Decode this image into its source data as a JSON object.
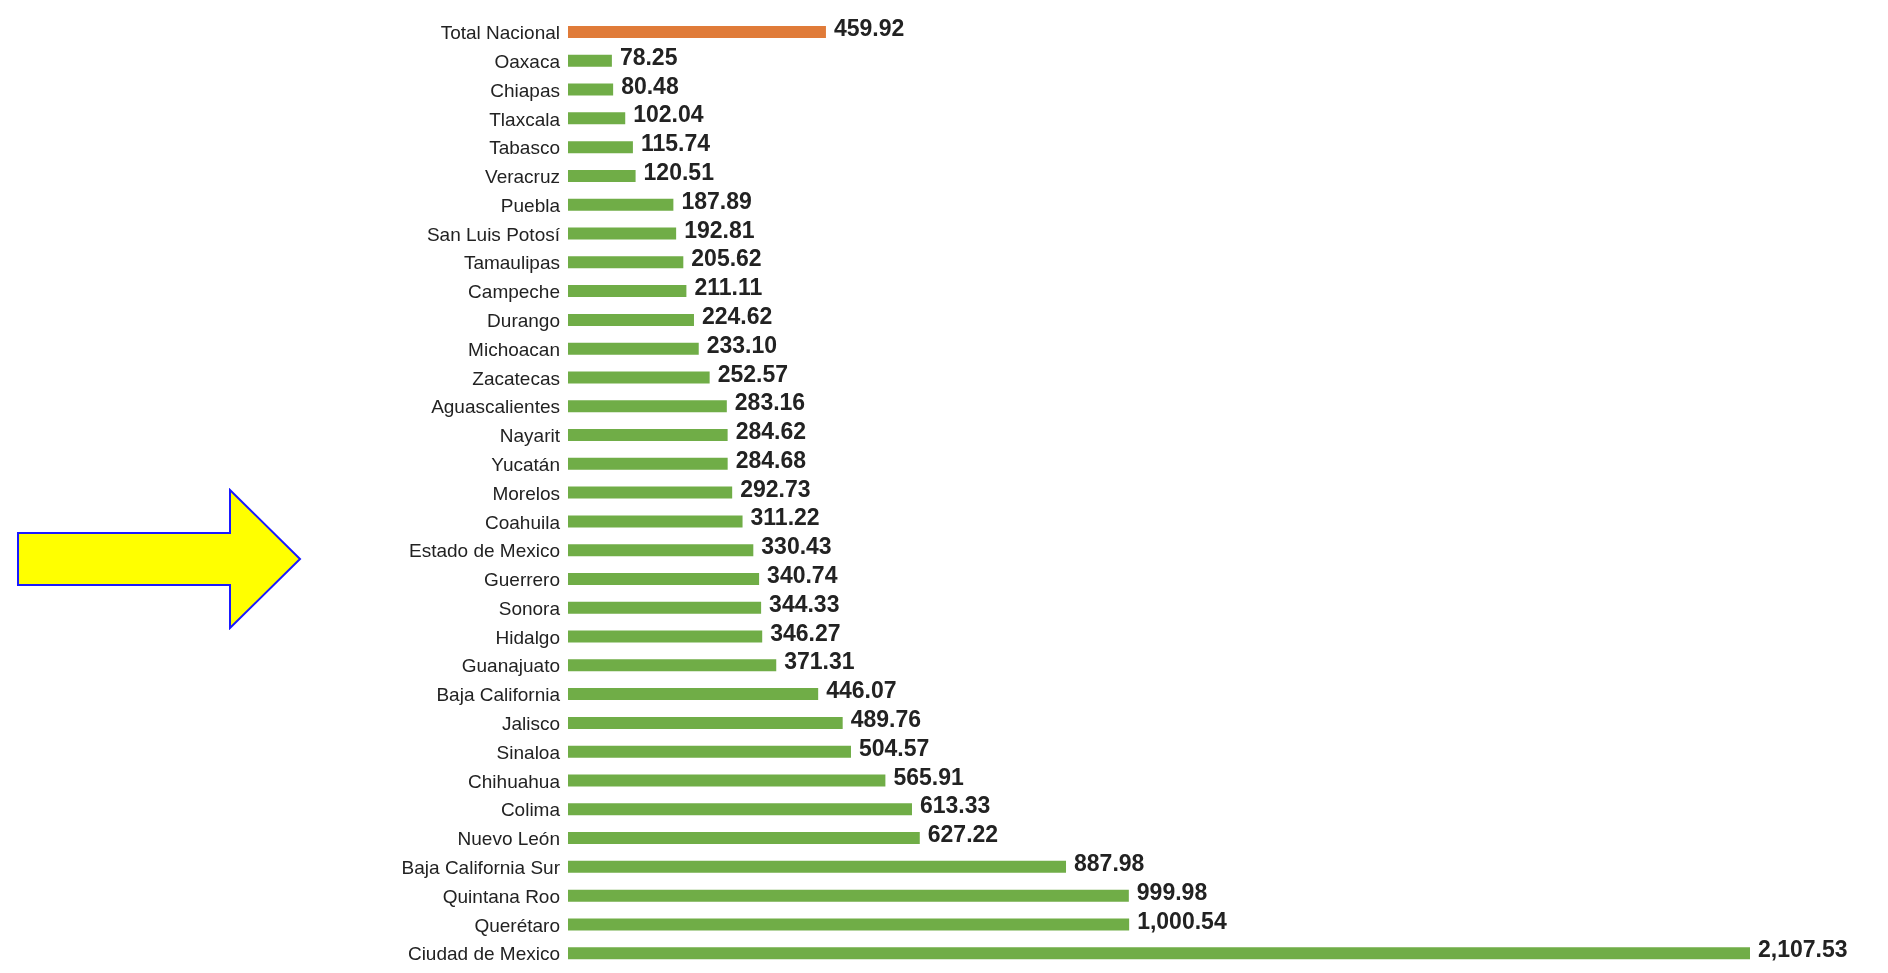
{
  "chart_data": {
    "type": "bar",
    "orientation": "horizontal",
    "categories": [
      "Total Nacional",
      "Oaxaca",
      "Chiapas",
      "Tlaxcala",
      "Tabasco",
      "Veracruz",
      "Puebla",
      "San Luis Potosí",
      "Tamaulipas",
      "Campeche",
      "Durango",
      "Michoacan",
      "Zacatecas",
      "Aguascalientes",
      "Nayarit",
      "Yucatán",
      "Morelos",
      "Coahuila",
      "Estado de Mexico",
      "Guerrero",
      "Sonora",
      "Hidalgo",
      "Guanajuato",
      "Baja California",
      "Jalisco",
      "Sinaloa",
      "Chihuahua",
      "Colima",
      "Nuevo León",
      "Baja California Sur",
      "Quintana Roo",
      "Querétaro",
      "Ciudad de Mexico"
    ],
    "values": [
      459.92,
      78.25,
      80.48,
      102.04,
      115.74,
      120.51,
      187.89,
      192.81,
      205.62,
      211.11,
      224.62,
      233.1,
      252.57,
      283.16,
      284.62,
      284.68,
      292.73,
      311.22,
      330.43,
      340.74,
      344.33,
      346.27,
      371.31,
      446.07,
      489.76,
      504.57,
      565.91,
      613.33,
      627.22,
      887.98,
      999.98,
      1000.54,
      2107.53
    ],
    "value_labels": [
      "459.92",
      "78.25",
      "80.48",
      "102.04",
      "115.74",
      "120.51",
      "187.89",
      "192.81",
      "205.62",
      "211.11",
      "224.62",
      "233.10",
      "252.57",
      "283.16",
      "284.62",
      "284.68",
      "292.73",
      "311.22",
      "330.43",
      "340.74",
      "344.33",
      "346.27",
      "371.31",
      "446.07",
      "489.76",
      "504.57",
      "565.91",
      "613.33",
      "627.22",
      "887.98",
      "999.98",
      "1,000.54",
      "2,107.53"
    ],
    "colors": [
      "#e07b39",
      "#70ad47",
      "#70ad47",
      "#70ad47",
      "#70ad47",
      "#70ad47",
      "#70ad47",
      "#70ad47",
      "#70ad47",
      "#70ad47",
      "#70ad47",
      "#70ad47",
      "#70ad47",
      "#70ad47",
      "#70ad47",
      "#70ad47",
      "#70ad47",
      "#70ad47",
      "#70ad47",
      "#70ad47",
      "#70ad47",
      "#70ad47",
      "#70ad47",
      "#70ad47",
      "#70ad47",
      "#70ad47",
      "#70ad47",
      "#70ad47",
      "#70ad47",
      "#70ad47",
      "#70ad47",
      "#70ad47",
      "#70ad47"
    ]
  }
}
